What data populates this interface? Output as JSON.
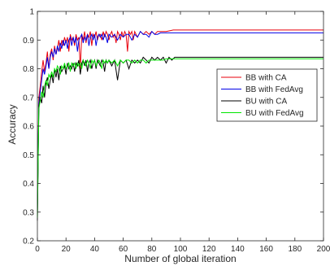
{
  "chart_data": {
    "type": "line",
    "xlabel": "Number of global iteration",
    "ylabel": "Accuracy",
    "xlim": [
      0,
      200
    ],
    "ylim": [
      0.2,
      1.0
    ],
    "xticks": [
      0,
      20,
      40,
      60,
      80,
      100,
      120,
      140,
      160,
      180,
      200
    ],
    "yticks": [
      0.2,
      0.3,
      0.4,
      0.5,
      0.6,
      0.7,
      0.8,
      0.9,
      1.0
    ],
    "grid": false,
    "legend_position": "right",
    "series": [
      {
        "name": "BB with CA",
        "color": "#e8000b",
        "x": [
          0,
          1,
          2,
          3,
          4,
          5,
          6,
          7,
          8,
          9,
          10,
          11,
          12,
          13,
          14,
          15,
          16,
          17,
          18,
          19,
          20,
          21,
          22,
          23,
          24,
          25,
          26,
          27,
          28,
          29,
          30,
          31,
          32,
          33,
          34,
          35,
          36,
          37,
          38,
          39,
          40,
          41,
          42,
          43,
          44,
          45,
          46,
          47,
          48,
          49,
          50,
          51,
          52,
          53,
          54,
          55,
          56,
          57,
          58,
          59,
          60,
          61,
          62,
          63,
          64,
          65,
          66,
          67,
          68,
          69,
          70,
          72,
          74,
          76,
          78,
          80,
          82,
          84,
          86,
          88,
          90,
          95,
          100,
          200
        ],
        "y": [
          0.3,
          0.7,
          0.74,
          0.79,
          0.83,
          0.79,
          0.82,
          0.86,
          0.8,
          0.85,
          0.87,
          0.83,
          0.88,
          0.85,
          0.87,
          0.9,
          0.86,
          0.9,
          0.88,
          0.91,
          0.89,
          0.91,
          0.86,
          0.92,
          0.9,
          0.91,
          0.88,
          0.92,
          0.9,
          0.91,
          0.8,
          0.92,
          0.9,
          0.93,
          0.89,
          0.92,
          0.91,
          0.93,
          0.88,
          0.92,
          0.91,
          0.93,
          0.9,
          0.92,
          0.92,
          0.9,
          0.93,
          0.91,
          0.93,
          0.92,
          0.9,
          0.92,
          0.93,
          0.91,
          0.92,
          0.89,
          0.93,
          0.92,
          0.9,
          0.93,
          0.91,
          0.93,
          0.92,
          0.86,
          0.93,
          0.92,
          0.93,
          0.9,
          0.93,
          0.92,
          0.91,
          0.93,
          0.92,
          0.93,
          0.92,
          0.93,
          0.92,
          0.93,
          0.93,
          0.93,
          0.93,
          0.935,
          0.935,
          0.935
        ]
      },
      {
        "name": "BB with FedAvg",
        "color": "#0000e6",
        "x": [
          0,
          1,
          2,
          3,
          4,
          5,
          6,
          7,
          8,
          9,
          10,
          11,
          12,
          13,
          14,
          15,
          16,
          17,
          18,
          19,
          20,
          21,
          22,
          23,
          24,
          25,
          26,
          27,
          28,
          29,
          30,
          31,
          32,
          33,
          34,
          35,
          36,
          37,
          38,
          39,
          40,
          41,
          42,
          43,
          44,
          45,
          46,
          47,
          48,
          49,
          50,
          52,
          54,
          56,
          58,
          60,
          62,
          64,
          66,
          68,
          70,
          72,
          74,
          76,
          78,
          80,
          82,
          84,
          86,
          88,
          90,
          95,
          100,
          200
        ],
        "y": [
          0.3,
          0.68,
          0.72,
          0.76,
          0.8,
          0.78,
          0.81,
          0.84,
          0.8,
          0.84,
          0.86,
          0.84,
          0.87,
          0.85,
          0.88,
          0.86,
          0.89,
          0.87,
          0.9,
          0.88,
          0.9,
          0.87,
          0.9,
          0.91,
          0.88,
          0.91,
          0.89,
          0.91,
          0.86,
          0.9,
          0.91,
          0.92,
          0.89,
          0.91,
          0.9,
          0.92,
          0.88,
          0.91,
          0.92,
          0.9,
          0.92,
          0.88,
          0.91,
          0.92,
          0.91,
          0.92,
          0.9,
          0.92,
          0.91,
          0.89,
          0.92,
          0.91,
          0.92,
          0.9,
          0.92,
          0.91,
          0.92,
          0.92,
          0.9,
          0.92,
          0.91,
          0.93,
          0.92,
          0.92,
          0.91,
          0.93,
          0.92,
          0.92,
          0.925,
          0.925,
          0.925,
          0.925,
          0.925,
          0.925
        ]
      },
      {
        "name": "BU with CA",
        "color": "#000000",
        "x": [
          0,
          1,
          2,
          3,
          4,
          5,
          6,
          7,
          8,
          9,
          10,
          11,
          12,
          13,
          14,
          15,
          16,
          17,
          18,
          19,
          20,
          21,
          22,
          23,
          24,
          25,
          26,
          27,
          28,
          29,
          30,
          31,
          32,
          33,
          34,
          35,
          36,
          37,
          38,
          39,
          40,
          41,
          42,
          43,
          44,
          45,
          46,
          47,
          48,
          49,
          50,
          52,
          54,
          56,
          58,
          60,
          62,
          64,
          66,
          68,
          70,
          72,
          74,
          76,
          78,
          80,
          82,
          84,
          86,
          88,
          90,
          92,
          94,
          96,
          98,
          100,
          105,
          110,
          115,
          120,
          200
        ],
        "y": [
          0.27,
          0.67,
          0.7,
          0.68,
          0.74,
          0.7,
          0.75,
          0.77,
          0.73,
          0.76,
          0.78,
          0.75,
          0.8,
          0.77,
          0.8,
          0.76,
          0.81,
          0.79,
          0.8,
          0.81,
          0.78,
          0.82,
          0.8,
          0.81,
          0.8,
          0.82,
          0.79,
          0.82,
          0.81,
          0.83,
          0.78,
          0.82,
          0.83,
          0.81,
          0.83,
          0.79,
          0.82,
          0.83,
          0.8,
          0.82,
          0.83,
          0.8,
          0.83,
          0.82,
          0.81,
          0.83,
          0.82,
          0.79,
          0.83,
          0.82,
          0.83,
          0.81,
          0.83,
          0.76,
          0.83,
          0.82,
          0.83,
          0.8,
          0.83,
          0.82,
          0.83,
          0.82,
          0.84,
          0.83,
          0.82,
          0.84,
          0.83,
          0.84,
          0.83,
          0.84,
          0.82,
          0.84,
          0.83,
          0.84,
          0.84,
          0.84,
          0.84,
          0.84,
          0.84,
          0.84,
          0.84
        ]
      },
      {
        "name": "BU with FedAvg",
        "color": "#00e600",
        "x": [
          0,
          1,
          2,
          3,
          4,
          5,
          6,
          7,
          8,
          9,
          10,
          11,
          12,
          13,
          14,
          15,
          16,
          17,
          18,
          19,
          20,
          21,
          22,
          23,
          24,
          25,
          26,
          27,
          28,
          29,
          30,
          31,
          32,
          33,
          34,
          35,
          36,
          37,
          38,
          39,
          40,
          41,
          42,
          43,
          44,
          45,
          46,
          47,
          48,
          49,
          50,
          52,
          54,
          56,
          58,
          60,
          62,
          64,
          66,
          68,
          70,
          72,
          74,
          76,
          78,
          80,
          82,
          84,
          86,
          88,
          90,
          95,
          100,
          110,
          120,
          200
        ],
        "y": [
          0.28,
          0.66,
          0.69,
          0.72,
          0.7,
          0.74,
          0.76,
          0.74,
          0.78,
          0.77,
          0.79,
          0.77,
          0.8,
          0.79,
          0.81,
          0.8,
          0.78,
          0.81,
          0.8,
          0.82,
          0.8,
          0.81,
          0.82,
          0.79,
          0.82,
          0.81,
          0.82,
          0.8,
          0.82,
          0.81,
          0.82,
          0.8,
          0.83,
          0.82,
          0.81,
          0.83,
          0.82,
          0.8,
          0.83,
          0.82,
          0.83,
          0.81,
          0.82,
          0.83,
          0.82,
          0.8,
          0.83,
          0.82,
          0.83,
          0.82,
          0.83,
          0.82,
          0.83,
          0.81,
          0.83,
          0.82,
          0.83,
          0.83,
          0.82,
          0.83,
          0.82,
          0.83,
          0.83,
          0.82,
          0.83,
          0.83,
          0.83,
          0.83,
          0.83,
          0.83,
          0.835,
          0.835,
          0.835,
          0.835,
          0.835,
          0.835
        ]
      }
    ]
  }
}
